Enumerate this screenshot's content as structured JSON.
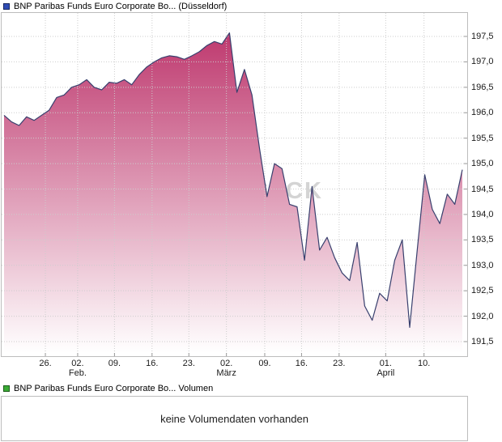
{
  "header": {
    "title": "BNP Paribas Funds Euro Corporate Bo... (Düsseldorf)",
    "legend_fill": "#2f4db5",
    "legend_border": "#17265e"
  },
  "volume": {
    "title": "BNP Paribas Funds Euro Corporate Bo... Volumen",
    "legend_fill": "#3aaa35",
    "legend_border": "#1c5c1a",
    "empty_message": "keine Volumendaten vorhanden"
  },
  "watermark": "STCK",
  "chart_data": {
    "type": "area",
    "title": "BNP Paribas Funds Euro Corporate Bo... (Düsseldorf)",
    "ylim": [
      191.5,
      197.5
    ],
    "grid": true,
    "line_color": "#39406e",
    "area_top_color": "#bf3b70",
    "area_bottom_color": "#ffffff",
    "grid_color": "#cdcdcd",
    "tick_color": "#999999",
    "y_ticks": [
      {
        "v": 197.5,
        "label": "197,5"
      },
      {
        "v": 197.0,
        "label": "197,0"
      },
      {
        "v": 196.5,
        "label": "196,5"
      },
      {
        "v": 196.0,
        "label": "196,0"
      },
      {
        "v": 195.5,
        "label": "195,5"
      },
      {
        "v": 195.0,
        "label": "195,0"
      },
      {
        "v": 194.5,
        "label": "194,5"
      },
      {
        "v": 194.0,
        "label": "194,0"
      },
      {
        "v": 193.5,
        "label": "193,5"
      },
      {
        "v": 193.0,
        "label": "193,0"
      },
      {
        "v": 192.5,
        "label": "192,5"
      },
      {
        "v": 192.0,
        "label": "192,0"
      },
      {
        "v": 191.5,
        "label": "191,5"
      }
    ],
    "x_ticks": [
      {
        "pos": 5.5,
        "label": "26."
      },
      {
        "pos": 9.8,
        "label": "02.",
        "sub": "Feb."
      },
      {
        "pos": 14.7,
        "label": "09."
      },
      {
        "pos": 19.7,
        "label": "16."
      },
      {
        "pos": 24.6,
        "label": "23."
      },
      {
        "pos": 29.6,
        "label": "02.",
        "sub": "März"
      },
      {
        "pos": 34.7,
        "label": "09."
      },
      {
        "pos": 39.6,
        "label": "16."
      },
      {
        "pos": 44.6,
        "label": "23."
      },
      {
        "pos": 50.8,
        "label": "01.",
        "sub": "April"
      },
      {
        "pos": 55.9,
        "label": "10."
      }
    ],
    "values": [
      195.95,
      195.82,
      195.75,
      195.92,
      195.85,
      195.95,
      196.05,
      196.3,
      196.35,
      196.5,
      196.55,
      196.65,
      196.5,
      196.45,
      196.6,
      196.58,
      196.65,
      196.55,
      196.75,
      196.9,
      197.0,
      197.08,
      197.12,
      197.1,
      197.05,
      197.12,
      197.2,
      197.32,
      197.4,
      197.35,
      197.57,
      196.4,
      196.85,
      196.35,
      195.3,
      194.35,
      195.0,
      194.9,
      194.2,
      194.15,
      193.1,
      194.55,
      193.3,
      193.55,
      193.15,
      192.85,
      192.7,
      193.45,
      192.2,
      191.92,
      192.45,
      192.3,
      193.1,
      193.5,
      191.78,
      193.3,
      194.78,
      194.1,
      193.82,
      194.4,
      194.2,
      194.88
    ]
  }
}
